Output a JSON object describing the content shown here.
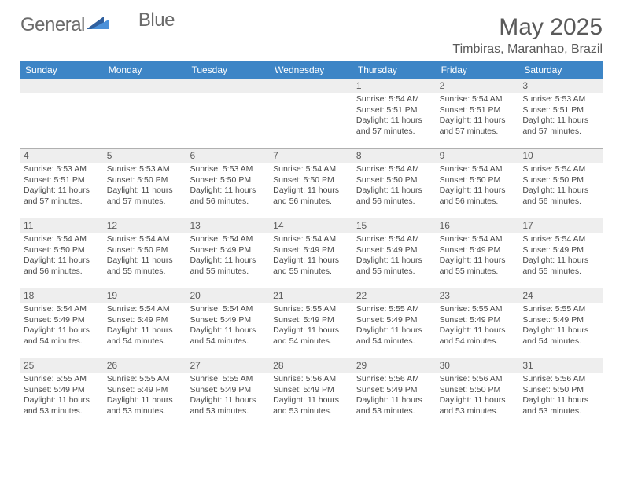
{
  "logo": {
    "text1": "General",
    "text2": "Blue"
  },
  "title": "May 2025",
  "location": "Timbiras, Maranhao, Brazil",
  "colors": {
    "header_bar": "#3d85c6",
    "daynum_bg": "#eeeeee",
    "logo_tri_dark": "#2f5f9e",
    "logo_tri_light": "#4a90d9",
    "text_gray": "#5a5a5a"
  },
  "dow": [
    "Sunday",
    "Monday",
    "Tuesday",
    "Wednesday",
    "Thursday",
    "Friday",
    "Saturday"
  ],
  "weeks": [
    [
      {
        "n": "",
        "l": []
      },
      {
        "n": "",
        "l": []
      },
      {
        "n": "",
        "l": []
      },
      {
        "n": "",
        "l": []
      },
      {
        "n": "1",
        "l": [
          "Sunrise: 5:54 AM",
          "Sunset: 5:51 PM",
          "Daylight: 11 hours",
          "and 57 minutes."
        ]
      },
      {
        "n": "2",
        "l": [
          "Sunrise: 5:54 AM",
          "Sunset: 5:51 PM",
          "Daylight: 11 hours",
          "and 57 minutes."
        ]
      },
      {
        "n": "3",
        "l": [
          "Sunrise: 5:53 AM",
          "Sunset: 5:51 PM",
          "Daylight: 11 hours",
          "and 57 minutes."
        ]
      }
    ],
    [
      {
        "n": "4",
        "l": [
          "Sunrise: 5:53 AM",
          "Sunset: 5:51 PM",
          "Daylight: 11 hours",
          "and 57 minutes."
        ]
      },
      {
        "n": "5",
        "l": [
          "Sunrise: 5:53 AM",
          "Sunset: 5:50 PM",
          "Daylight: 11 hours",
          "and 57 minutes."
        ]
      },
      {
        "n": "6",
        "l": [
          "Sunrise: 5:53 AM",
          "Sunset: 5:50 PM",
          "Daylight: 11 hours",
          "and 56 minutes."
        ]
      },
      {
        "n": "7",
        "l": [
          "Sunrise: 5:54 AM",
          "Sunset: 5:50 PM",
          "Daylight: 11 hours",
          "and 56 minutes."
        ]
      },
      {
        "n": "8",
        "l": [
          "Sunrise: 5:54 AM",
          "Sunset: 5:50 PM",
          "Daylight: 11 hours",
          "and 56 minutes."
        ]
      },
      {
        "n": "9",
        "l": [
          "Sunrise: 5:54 AM",
          "Sunset: 5:50 PM",
          "Daylight: 11 hours",
          "and 56 minutes."
        ]
      },
      {
        "n": "10",
        "l": [
          "Sunrise: 5:54 AM",
          "Sunset: 5:50 PM",
          "Daylight: 11 hours",
          "and 56 minutes."
        ]
      }
    ],
    [
      {
        "n": "11",
        "l": [
          "Sunrise: 5:54 AM",
          "Sunset: 5:50 PM",
          "Daylight: 11 hours",
          "and 56 minutes."
        ]
      },
      {
        "n": "12",
        "l": [
          "Sunrise: 5:54 AM",
          "Sunset: 5:50 PM",
          "Daylight: 11 hours",
          "and 55 minutes."
        ]
      },
      {
        "n": "13",
        "l": [
          "Sunrise: 5:54 AM",
          "Sunset: 5:49 PM",
          "Daylight: 11 hours",
          "and 55 minutes."
        ]
      },
      {
        "n": "14",
        "l": [
          "Sunrise: 5:54 AM",
          "Sunset: 5:49 PM",
          "Daylight: 11 hours",
          "and 55 minutes."
        ]
      },
      {
        "n": "15",
        "l": [
          "Sunrise: 5:54 AM",
          "Sunset: 5:49 PM",
          "Daylight: 11 hours",
          "and 55 minutes."
        ]
      },
      {
        "n": "16",
        "l": [
          "Sunrise: 5:54 AM",
          "Sunset: 5:49 PM",
          "Daylight: 11 hours",
          "and 55 minutes."
        ]
      },
      {
        "n": "17",
        "l": [
          "Sunrise: 5:54 AM",
          "Sunset: 5:49 PM",
          "Daylight: 11 hours",
          "and 55 minutes."
        ]
      }
    ],
    [
      {
        "n": "18",
        "l": [
          "Sunrise: 5:54 AM",
          "Sunset: 5:49 PM",
          "Daylight: 11 hours",
          "and 54 minutes."
        ]
      },
      {
        "n": "19",
        "l": [
          "Sunrise: 5:54 AM",
          "Sunset: 5:49 PM",
          "Daylight: 11 hours",
          "and 54 minutes."
        ]
      },
      {
        "n": "20",
        "l": [
          "Sunrise: 5:54 AM",
          "Sunset: 5:49 PM",
          "Daylight: 11 hours",
          "and 54 minutes."
        ]
      },
      {
        "n": "21",
        "l": [
          "Sunrise: 5:55 AM",
          "Sunset: 5:49 PM",
          "Daylight: 11 hours",
          "and 54 minutes."
        ]
      },
      {
        "n": "22",
        "l": [
          "Sunrise: 5:55 AM",
          "Sunset: 5:49 PM",
          "Daylight: 11 hours",
          "and 54 minutes."
        ]
      },
      {
        "n": "23",
        "l": [
          "Sunrise: 5:55 AM",
          "Sunset: 5:49 PM",
          "Daylight: 11 hours",
          "and 54 minutes."
        ]
      },
      {
        "n": "24",
        "l": [
          "Sunrise: 5:55 AM",
          "Sunset: 5:49 PM",
          "Daylight: 11 hours",
          "and 54 minutes."
        ]
      }
    ],
    [
      {
        "n": "25",
        "l": [
          "Sunrise: 5:55 AM",
          "Sunset: 5:49 PM",
          "Daylight: 11 hours",
          "and 53 minutes."
        ]
      },
      {
        "n": "26",
        "l": [
          "Sunrise: 5:55 AM",
          "Sunset: 5:49 PM",
          "Daylight: 11 hours",
          "and 53 minutes."
        ]
      },
      {
        "n": "27",
        "l": [
          "Sunrise: 5:55 AM",
          "Sunset: 5:49 PM",
          "Daylight: 11 hours",
          "and 53 minutes."
        ]
      },
      {
        "n": "28",
        "l": [
          "Sunrise: 5:56 AM",
          "Sunset: 5:49 PM",
          "Daylight: 11 hours",
          "and 53 minutes."
        ]
      },
      {
        "n": "29",
        "l": [
          "Sunrise: 5:56 AM",
          "Sunset: 5:49 PM",
          "Daylight: 11 hours",
          "and 53 minutes."
        ]
      },
      {
        "n": "30",
        "l": [
          "Sunrise: 5:56 AM",
          "Sunset: 5:50 PM",
          "Daylight: 11 hours",
          "and 53 minutes."
        ]
      },
      {
        "n": "31",
        "l": [
          "Sunrise: 5:56 AM",
          "Sunset: 5:50 PM",
          "Daylight: 11 hours",
          "and 53 minutes."
        ]
      }
    ]
  ]
}
